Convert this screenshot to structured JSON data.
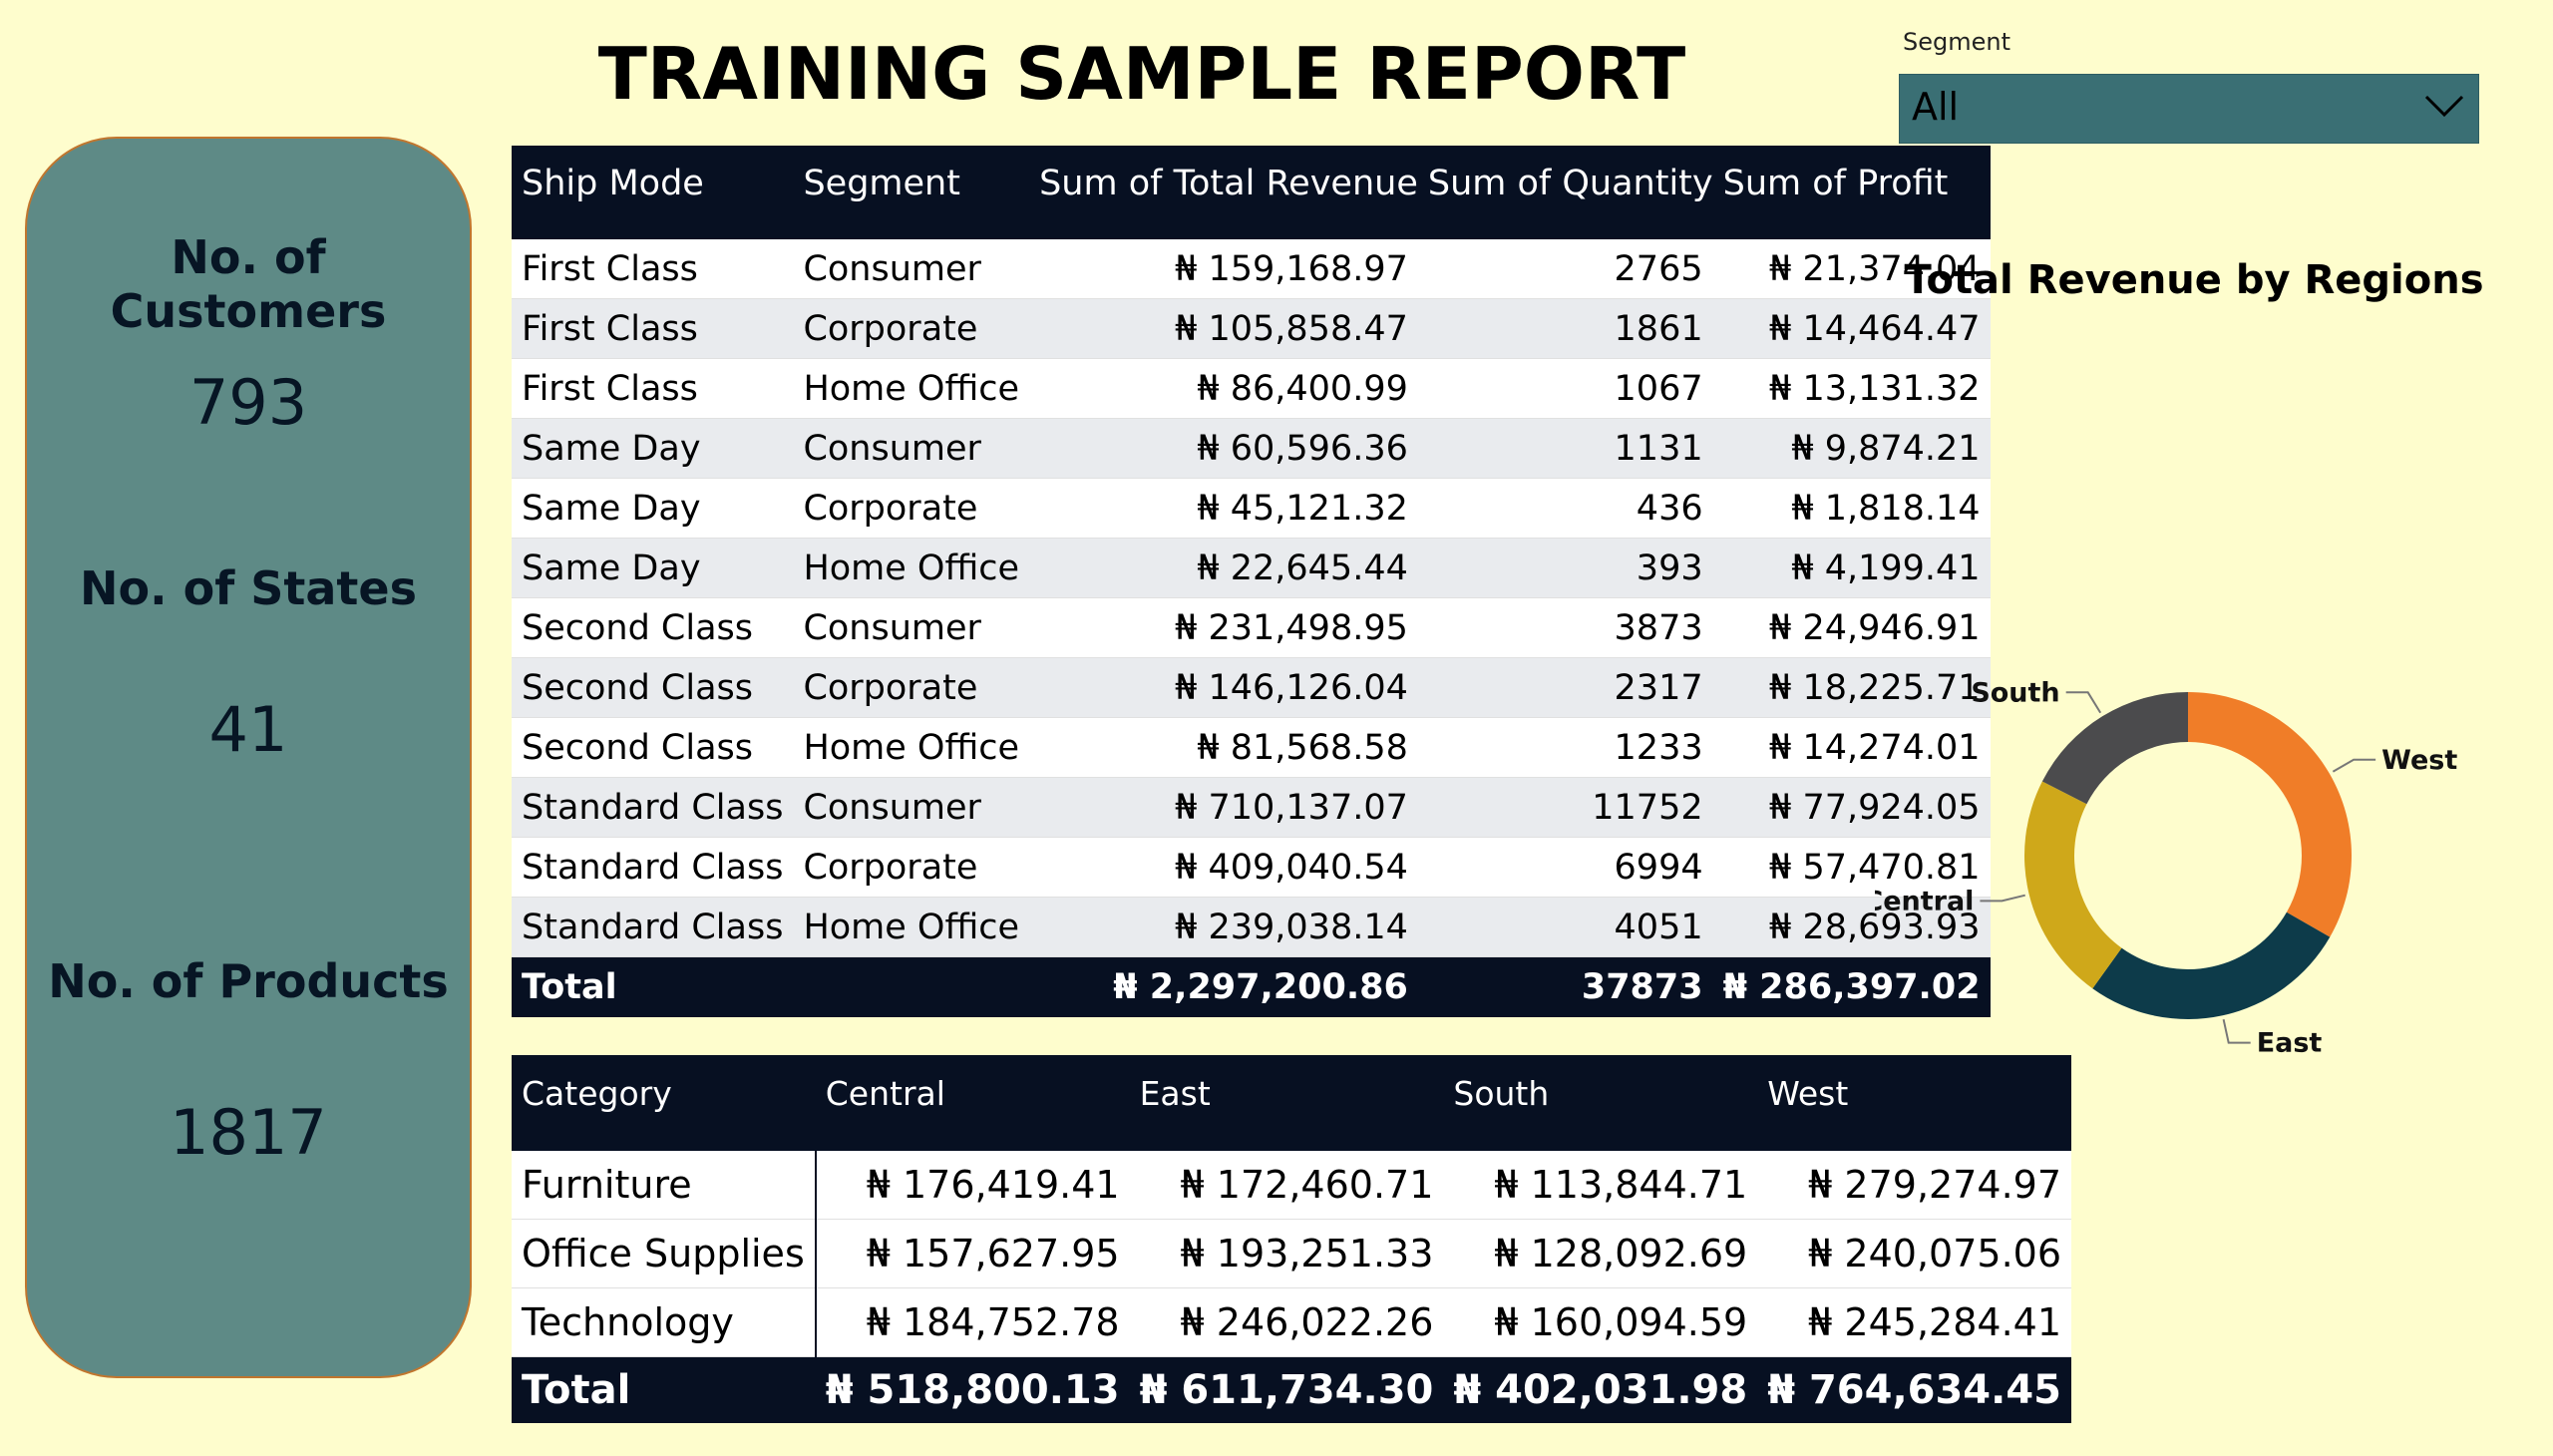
{
  "report": {
    "title": "TRAINING SAMPLE REPORT"
  },
  "kpis": [
    {
      "label": "No. of Customers",
      "value": "793"
    },
    {
      "label": "No. of States",
      "value": "41"
    },
    {
      "label": "No. of Products",
      "value": "1817"
    }
  ],
  "slicer": {
    "label": "Segment",
    "value": "All",
    "icon": "chevron-down-icon"
  },
  "ship_table": {
    "headers": [
      "Ship Mode",
      "Segment",
      "Sum of Total Revenue",
      "Sum of Quantity",
      "Sum of Profit"
    ],
    "rows": [
      [
        "First Class",
        "Consumer",
        "₦ 159,168.97",
        "2765",
        "₦ 21,374.04"
      ],
      [
        "First Class",
        "Corporate",
        "₦ 105,858.47",
        "1861",
        "₦ 14,464.47"
      ],
      [
        "First Class",
        "Home Office",
        "₦ 86,400.99",
        "1067",
        "₦ 13,131.32"
      ],
      [
        "Same Day",
        "Consumer",
        "₦ 60,596.36",
        "1131",
        "₦ 9,874.21"
      ],
      [
        "Same Day",
        "Corporate",
        "₦ 45,121.32",
        "436",
        "₦ 1,818.14"
      ],
      [
        "Same Day",
        "Home Office",
        "₦ 22,645.44",
        "393",
        "₦ 4,199.41"
      ],
      [
        "Second Class",
        "Consumer",
        "₦ 231,498.95",
        "3873",
        "₦ 24,946.91"
      ],
      [
        "Second Class",
        "Corporate",
        "₦ 146,126.04",
        "2317",
        "₦ 18,225.71"
      ],
      [
        "Second Class",
        "Home Office",
        "₦ 81,568.58",
        "1233",
        "₦ 14,274.01"
      ],
      [
        "Standard Class",
        "Consumer",
        "₦ 710,137.07",
        "11752",
        "₦ 77,924.05"
      ],
      [
        "Standard Class",
        "Corporate",
        "₦ 409,040.54",
        "6994",
        "₦ 57,470.81"
      ],
      [
        "Standard Class",
        "Home Office",
        "₦ 239,038.14",
        "4051",
        "₦ 28,693.93"
      ]
    ],
    "total": {
      "label": "Total",
      "revenue": "₦ 2,297,200.86",
      "quantity": "37873",
      "profit": "₦ 286,397.02"
    }
  },
  "category_table": {
    "headers": [
      "Category",
      "Central",
      "East",
      "South",
      "West"
    ],
    "rows": [
      [
        "Furniture",
        "₦ 176,419.41",
        "₦ 172,460.71",
        "₦ 113,844.71",
        "₦ 279,274.97"
      ],
      [
        "Office Supplies",
        "₦ 157,627.95",
        "₦ 193,251.33",
        "₦ 128,092.69",
        "₦ 240,075.06"
      ],
      [
        "Technology",
        "₦ 184,752.78",
        "₦ 246,022.26",
        "₦ 160,094.59",
        "₦ 245,284.41"
      ]
    ],
    "total": [
      "Total",
      "₦ 518,800.13",
      "₦ 611,734.30",
      "₦ 402,031.98",
      "₦ 764,634.45"
    ]
  },
  "chart_data": {
    "type": "pie",
    "title": "Total Revenue by Regions",
    "categories": [
      "West",
      "East",
      "Central",
      "South"
    ],
    "values": [
      764634.45,
      611734.3,
      518800.13,
      402031.98
    ],
    "colors": [
      "#f07d28",
      "#0d3b4a",
      "#cfa81a",
      "#4b4b4d"
    ]
  }
}
